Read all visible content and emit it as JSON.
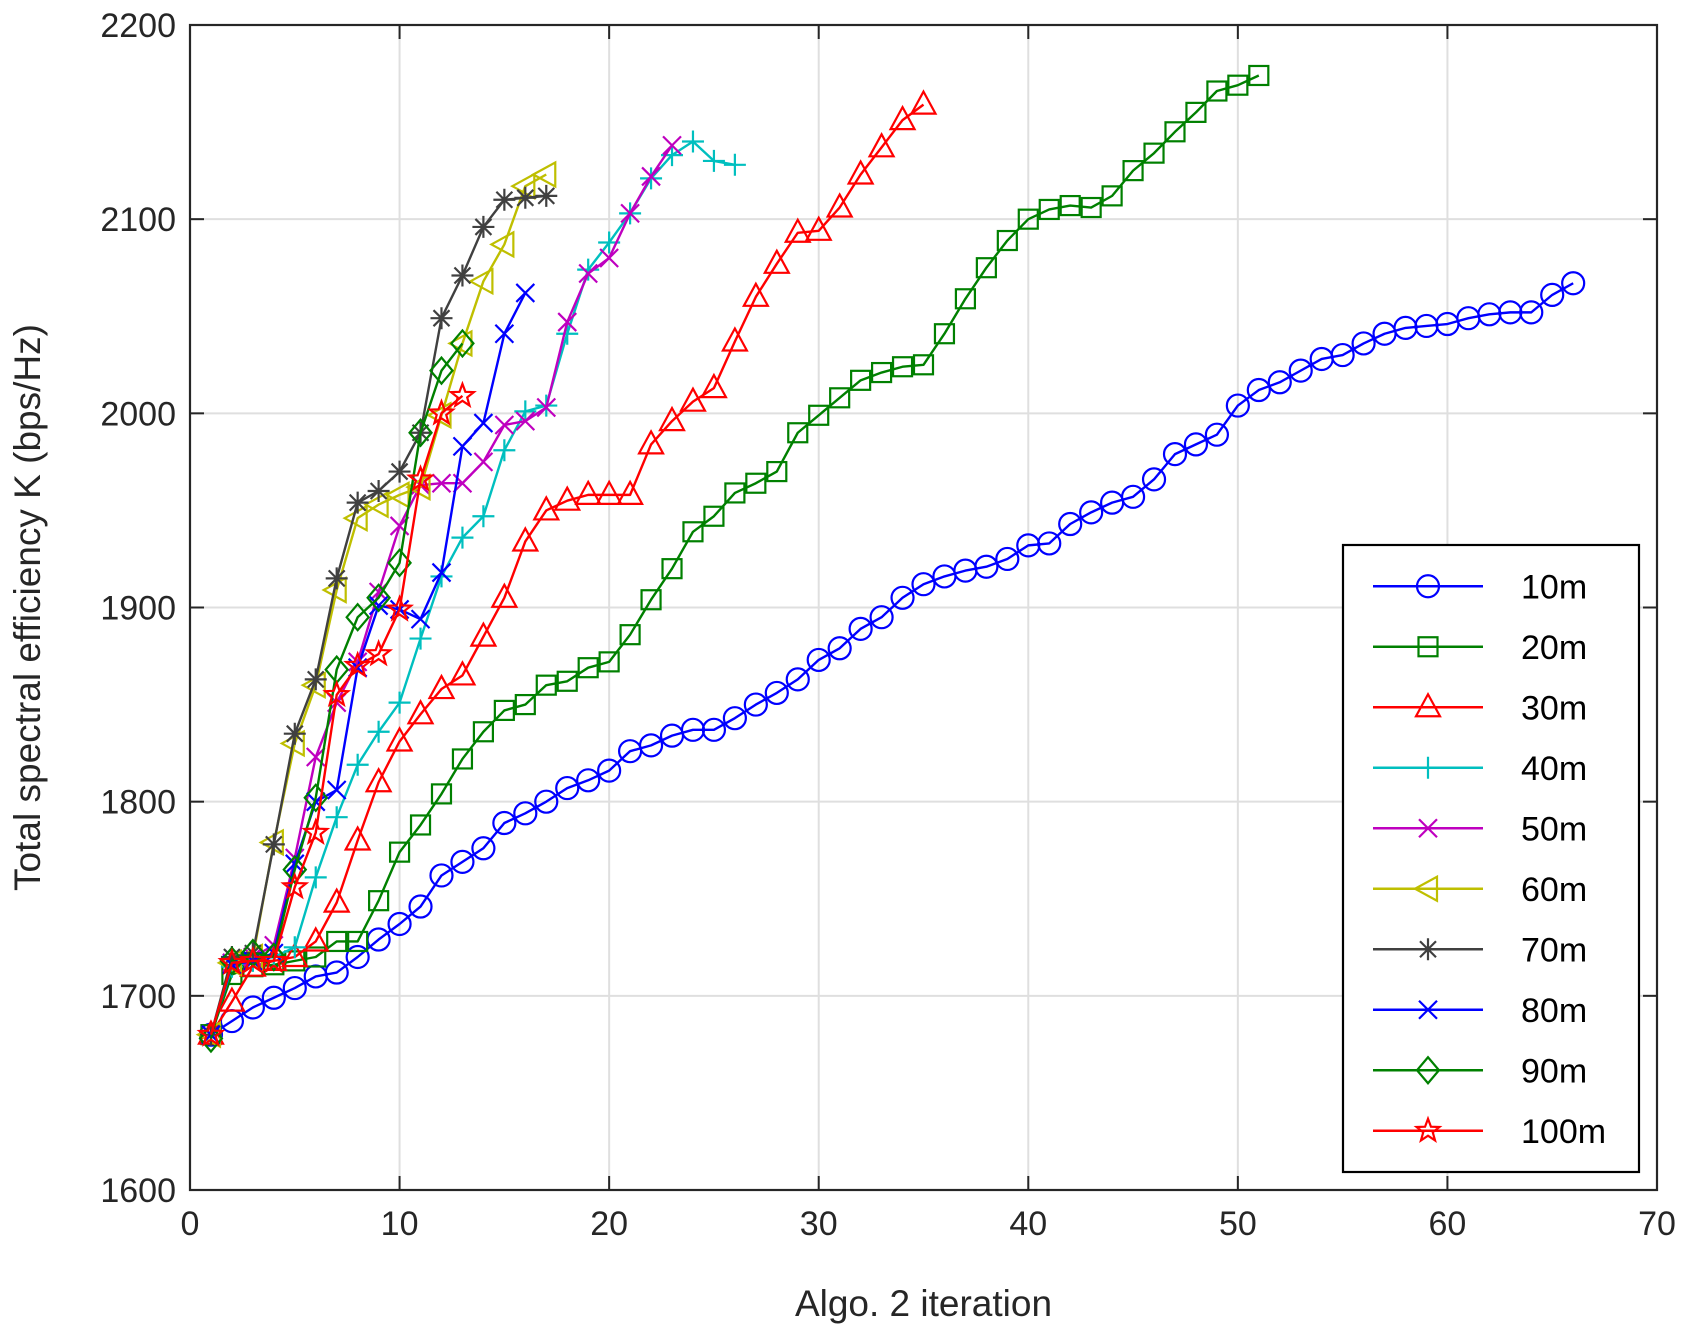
{
  "chart_data": {
    "type": "line",
    "title": "",
    "xlabel": "Algo. 2 iteration",
    "ylabel": "Total spectral efficiency K (bps/Hz)",
    "xlim": [
      0,
      70
    ],
    "ylim": [
      1600,
      2200
    ],
    "xticks": [
      0,
      10,
      20,
      30,
      40,
      50,
      60,
      70
    ],
    "yticks": [
      1600,
      1700,
      1800,
      1900,
      2000,
      2100,
      2200
    ],
    "grid": true,
    "legend_position": "lower-right",
    "series": [
      {
        "name": "10m",
        "color": "#0000ff",
        "marker": "circle",
        "x": [
          1,
          2,
          3,
          4,
          5,
          6,
          7,
          8,
          9,
          10,
          11,
          12,
          13,
          14,
          15,
          16,
          17,
          18,
          19,
          20,
          21,
          22,
          23,
          24,
          25,
          26,
          27,
          28,
          29,
          30,
          31,
          32,
          33,
          34,
          35,
          36,
          37,
          38,
          39,
          40,
          41,
          42,
          43,
          44,
          45,
          46,
          47,
          48,
          49,
          50,
          51,
          52,
          53,
          54,
          55,
          56,
          57,
          58,
          59,
          60,
          61,
          62,
          63,
          64,
          65,
          66
        ],
        "y": [
          1680,
          1687,
          1694,
          1699,
          1704,
          1710,
          1712,
          1720,
          1729,
          1737,
          1746,
          1762,
          1769,
          1776,
          1789,
          1794,
          1800,
          1807,
          1811,
          1816,
          1826,
          1829,
          1834,
          1837,
          1837,
          1843,
          1850,
          1856,
          1863,
          1873,
          1879,
          1889,
          1895,
          1905,
          1912,
          1916,
          1919,
          1921,
          1925,
          1932,
          1933,
          1943,
          1949,
          1954,
          1957,
          1966,
          1979,
          1984,
          1989,
          2004,
          2012,
          2016,
          2022,
          2028,
          2030,
          2036,
          2041,
          2044,
          2045,
          2046,
          2049,
          2051,
          2052,
          2052,
          2061,
          2067
        ]
      },
      {
        "name": "20m",
        "color": "#008000",
        "marker": "square",
        "x": [
          1,
          2,
          3,
          4,
          5,
          6,
          7,
          8,
          9,
          10,
          11,
          12,
          13,
          14,
          15,
          16,
          17,
          18,
          19,
          20,
          21,
          22,
          23,
          24,
          25,
          26,
          27,
          28,
          29,
          30,
          31,
          32,
          33,
          34,
          35,
          36,
          37,
          38,
          39,
          40,
          41,
          42,
          43,
          44,
          45,
          46,
          47,
          48,
          49,
          50,
          51
        ],
        "y": [
          1680,
          1711,
          1715,
          1716,
          1718,
          1720,
          1728,
          1728,
          1749,
          1774,
          1788,
          1804,
          1822,
          1836,
          1847,
          1850,
          1860,
          1862,
          1869,
          1872,
          1886,
          1904,
          1920,
          1939,
          1947,
          1959,
          1964,
          1970,
          1990,
          1999,
          2008,
          2017,
          2021,
          2024,
          2025,
          2041,
          2059,
          2075,
          2089,
          2100,
          2105,
          2107,
          2106,
          2112,
          2125,
          2134,
          2145,
          2155,
          2166,
          2169,
          2174
        ]
      },
      {
        "name": "30m",
        "color": "#ff0000",
        "marker": "triangle-up",
        "x": [
          1,
          2,
          3,
          4,
          5,
          6,
          7,
          8,
          9,
          10,
          11,
          12,
          13,
          14,
          15,
          16,
          17,
          18,
          19,
          20,
          21,
          22,
          23,
          24,
          25,
          26,
          27,
          28,
          29,
          30,
          31,
          32,
          33,
          34,
          35
        ],
        "y": [
          1680,
          1697,
          1715,
          1718,
          1720,
          1728,
          1748,
          1780,
          1810,
          1831,
          1845,
          1858,
          1865,
          1885,
          1905,
          1934,
          1950,
          1955,
          1958,
          1958,
          1958,
          1984,
          1996,
          2006,
          2013,
          2037,
          2060,
          2077,
          2093,
          2094,
          2106,
          2123,
          2137,
          2151,
          2159
        ]
      },
      {
        "name": "40m",
        "color": "#00bfbf",
        "marker": "plus",
        "x": [
          1,
          2,
          3,
          4,
          5,
          6,
          7,
          8,
          9,
          10,
          11,
          12,
          13,
          14,
          15,
          16,
          17,
          18,
          19,
          20,
          21,
          22,
          23,
          24,
          25,
          26
        ],
        "y": [
          1680,
          1715,
          1718,
          1720,
          1725,
          1761,
          1792,
          1819,
          1836,
          1851,
          1884,
          1916,
          1936,
          1947,
          1981,
          2001,
          2004,
          2041,
          2074,
          2088,
          2103,
          2121,
          2133,
          2140,
          2130,
          2128
        ]
      },
      {
        "name": "50m",
        "color": "#bf00bf",
        "marker": "x",
        "x": [
          1,
          2,
          3,
          4,
          5,
          6,
          7,
          8,
          9,
          10,
          11,
          12,
          13,
          14,
          15,
          16,
          17,
          18,
          19,
          20,
          21,
          22,
          23
        ],
        "y": [
          1680,
          1717,
          1720,
          1726,
          1771,
          1823,
          1851,
          1872,
          1908,
          1942,
          1963,
          1964,
          1964,
          1975,
          1994,
          1996,
          2003,
          2047,
          2072,
          2080,
          2103,
          2122,
          2138
        ]
      },
      {
        "name": "60m",
        "color": "#bfbf00",
        "marker": "triangle-left",
        "x": [
          1,
          2,
          3,
          4,
          5,
          6,
          7,
          8,
          9,
          10,
          11,
          12,
          13,
          14,
          15,
          16,
          17
        ],
        "y": [
          1680,
          1717,
          1720,
          1779,
          1830,
          1860,
          1909,
          1946,
          1953,
          1958,
          1962,
          1999,
          2036,
          2068,
          2087,
          2117,
          2123
        ]
      },
      {
        "name": "70m",
        "color": "#404040",
        "marker": "asterisk",
        "x": [
          1,
          2,
          3,
          4,
          5,
          6,
          7,
          8,
          9,
          10,
          11,
          12,
          13,
          14,
          15,
          16,
          17
        ],
        "y": [
          1680,
          1720,
          1722,
          1778,
          1835,
          1863,
          1915,
          1954,
          1960,
          1970,
          1990,
          2049,
          2071,
          2096,
          2110,
          2111,
          2112
        ]
      },
      {
        "name": "80m",
        "color": "#0000ff",
        "marker": "x",
        "x": [
          1,
          2,
          3,
          4,
          5,
          6,
          7,
          8,
          9,
          10,
          11,
          12,
          13,
          14,
          15,
          16
        ],
        "y": [
          1680,
          1716,
          1718,
          1722,
          1768,
          1800,
          1806,
          1869,
          1901,
          1899,
          1894,
          1918,
          1983,
          1995,
          2041,
          2062
        ]
      },
      {
        "name": "90m",
        "color": "#008000",
        "marker": "diamond",
        "x": [
          1,
          2,
          3,
          4,
          5,
          6,
          7,
          8,
          9,
          10,
          11,
          12,
          13
        ],
        "y": [
          1678,
          1718,
          1722,
          1720,
          1765,
          1802,
          1868,
          1895,
          1905,
          1923,
          1990,
          2022,
          2036
        ]
      },
      {
        "name": "100m",
        "color": "#ff0000",
        "marker": "star",
        "x": [
          1,
          2,
          3,
          4,
          5,
          6,
          7,
          8,
          9,
          10,
          11,
          12,
          13
        ],
        "y": [
          1680,
          1717,
          1718,
          1718,
          1756,
          1784,
          1855,
          1870,
          1876,
          1899,
          1966,
          2000,
          2009
        ]
      }
    ]
  }
}
